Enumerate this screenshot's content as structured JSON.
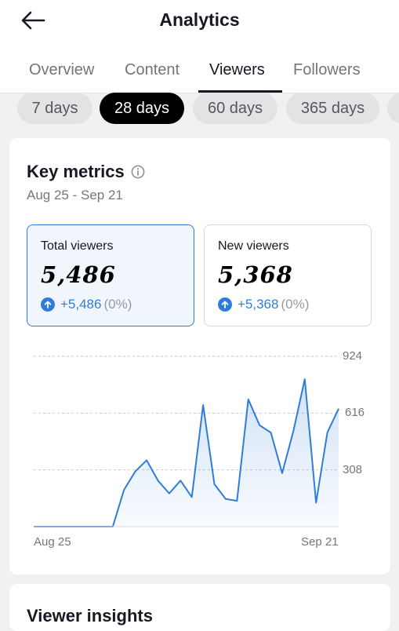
{
  "header": {
    "title": "Analytics",
    "back_icon": "back-arrow-icon"
  },
  "tabs": [
    {
      "label": "Overview",
      "active": false
    },
    {
      "label": "Content",
      "active": false
    },
    {
      "label": "Viewers",
      "active": true
    },
    {
      "label": "Followers",
      "active": false
    },
    {
      "label": "L",
      "active": false
    }
  ],
  "date_filters": [
    {
      "label": "7 days",
      "active": false
    },
    {
      "label": "28 days",
      "active": true
    },
    {
      "label": "60 days",
      "active": false
    },
    {
      "label": "365 days",
      "active": false
    }
  ],
  "key_metrics": {
    "title": "Key metrics",
    "info_icon": "info-icon",
    "date_range": "Aug 25 - Sep 21",
    "cards": [
      {
        "label": "Total viewers",
        "value": "5,486",
        "change": "+5,486",
        "change_pct": "(0%)",
        "selected": true
      },
      {
        "label": "New viewers",
        "value": "5,368",
        "change": "+5,368",
        "change_pct": "(0%)",
        "selected": false
      }
    ]
  },
  "chart_data": {
    "type": "area",
    "x_labels": [
      "Aug 25",
      "Sep 21"
    ],
    "y_ticks": [
      "924",
      "616",
      "308"
    ],
    "ylim": [
      0,
      924
    ],
    "grid": true,
    "line_color": "#2f7dd9",
    "values": [
      0,
      0,
      0,
      0,
      0,
      0,
      0,
      0,
      200,
      300,
      360,
      250,
      180,
      250,
      160,
      660,
      230,
      150,
      140,
      690,
      550,
      510,
      290,
      520,
      800,
      130,
      510,
      640
    ]
  },
  "viewer_insights": {
    "title": "Viewer insights"
  },
  "colors": {
    "accent": "#2f7dd9",
    "active_chip": "#000000",
    "background": "#f1f1f2"
  }
}
